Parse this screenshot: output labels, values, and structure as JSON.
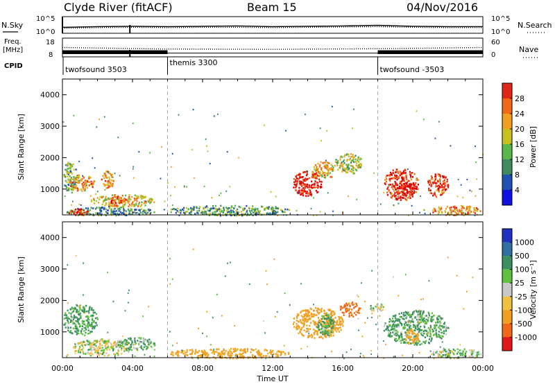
{
  "header": {
    "station": "Clyde River (fitACF)",
    "beam": "Beam 15",
    "date": "04/Nov/2016"
  },
  "noise_panel": {
    "left_label": "N.Sky",
    "right_label": "N.Search",
    "left_ticks": [
      "10^5",
      "10^0"
    ],
    "right_ticks": [
      "10^5",
      "10^0"
    ]
  },
  "freq_panel": {
    "left_label_line1": "Freq.",
    "left_label_line2": "[MHz]",
    "right_label": "Nave",
    "left_ticks": [
      "18",
      "8"
    ],
    "right_ticks": [
      "60",
      "0"
    ]
  },
  "cpid": {
    "label": "CPID",
    "segments": [
      {
        "name": "twofsound 3503",
        "start_hour": 0
      },
      {
        "name": "themis 3300",
        "start_hour": 6
      },
      {
        "name": "twofsound -3503",
        "start_hour": 18
      }
    ]
  },
  "power_panel": {
    "ylabel": "Slant Range [km]",
    "yticks": [
      "1000",
      "2000",
      "3000",
      "4000"
    ],
    "cbar_label": "Power [dB]",
    "cbar_ticks": [
      "4",
      "8",
      "12",
      "16",
      "20",
      "24",
      "28"
    ]
  },
  "velocity_panel": {
    "ylabel": "Slant Range [km]",
    "yticks": [
      "1000",
      "2000",
      "3000",
      "4000"
    ],
    "cbar_label": "Velocity [m s⁻¹]",
    "cbar_ticks": [
      "1000",
      "500",
      "100",
      "25",
      "-25",
      "-100",
      "-500",
      "-1000"
    ]
  },
  "x_axis": {
    "label": "Time UT",
    "ticks": [
      "00:00",
      "04:00",
      "08:00",
      "12:00",
      "16:00",
      "20:00",
      "00:00"
    ]
  },
  "colors": {
    "power_scale": [
      "#1010e0",
      "#2050b0",
      "#3f8a5e",
      "#58b94a",
      "#c8c020",
      "#f0a020",
      "#f06818",
      "#e02818",
      "#e00000"
    ],
    "velocity_scale": [
      "#2030c0",
      "#3070a0",
      "#3c9060",
      "#60c040",
      "#c8c8c8",
      "#f0c040",
      "#f0a020",
      "#f06818",
      "#e01818"
    ]
  },
  "chart_data": [
    {
      "type": "line",
      "title": "Clyde River (fitACF)",
      "xlabel": "Time UT",
      "xlim": [
        0,
        24
      ],
      "series": [
        {
          "name": "N.Sky",
          "x": [
            0,
            2,
            4,
            6,
            8,
            10,
            12,
            14,
            16,
            18,
            20,
            22,
            24
          ],
          "y": [
            18,
            20,
            21,
            20,
            21,
            22,
            20,
            21,
            22,
            24,
            21,
            20,
            20
          ]
        },
        {
          "name": "N.Search",
          "x": [
            0,
            2,
            4,
            6,
            8,
            10,
            12,
            14,
            16,
            18,
            20,
            22,
            24
          ],
          "y": [
            15,
            17,
            18,
            17,
            18,
            18,
            17,
            18,
            19,
            20,
            18,
            17,
            17
          ]
        }
      ]
    },
    {
      "type": "line",
      "xlabel": "Time UT",
      "ylabel": "Freq. [MHz]",
      "xlim": [
        0,
        24
      ],
      "ylim": [
        8,
        18
      ],
      "series": [
        {
          "name": "Freq.",
          "x": [
            0,
            6,
            18,
            24
          ],
          "y": [
            10,
            10,
            10,
            10
          ]
        },
        {
          "name": "Nave",
          "x": [
            0,
            6,
            12,
            18,
            24
          ],
          "y": [
            30,
            25,
            24,
            26,
            30
          ]
        }
      ]
    },
    {
      "type": "heatmap",
      "quantity": "Power",
      "xlabel": "Time UT",
      "ylabel": "Slant Range [km]",
      "xlim": [
        0,
        24
      ],
      "ylim": [
        180,
        4500
      ],
      "zlim": [
        0,
        30
      ],
      "blobs": [
        {
          "t0": 0.0,
          "t1": 0.8,
          "r0": 900,
          "r1": 1900,
          "v": 11
        },
        {
          "t0": 0.3,
          "t1": 1.8,
          "r0": 950,
          "r1": 1500,
          "v": 20
        },
        {
          "t0": 2.2,
          "t1": 2.9,
          "r0": 1000,
          "r1": 1600,
          "v": 18
        },
        {
          "t0": 0.0,
          "t1": 5.3,
          "r0": 180,
          "r1": 450,
          "v": 9
        },
        {
          "t0": 0.3,
          "t1": 1.5,
          "r0": 180,
          "r1": 400,
          "v": 27
        },
        {
          "t0": 1.6,
          "t1": 5.3,
          "r0": 450,
          "r1": 850,
          "v": 17
        },
        {
          "t0": 2.7,
          "t1": 3.6,
          "r0": 500,
          "r1": 800,
          "v": 23
        },
        {
          "t0": 6.0,
          "t1": 13.0,
          "r0": 180,
          "r1": 500,
          "v": 10
        },
        {
          "t0": 13.1,
          "t1": 14.8,
          "r0": 800,
          "r1": 1600,
          "v": 27
        },
        {
          "t0": 14.2,
          "t1": 15.5,
          "r0": 1300,
          "r1": 1900,
          "v": 18
        },
        {
          "t0": 15.5,
          "t1": 17.1,
          "r0": 1500,
          "r1": 2150,
          "v": 14
        },
        {
          "t0": 18.3,
          "t1": 20.3,
          "r0": 650,
          "r1": 1700,
          "v": 25
        },
        {
          "t0": 19.0,
          "t1": 20.2,
          "r0": 800,
          "r1": 1200,
          "v": 28
        },
        {
          "t0": 20.8,
          "t1": 22.0,
          "r0": 750,
          "r1": 1550,
          "v": 24
        },
        {
          "t0": 21.0,
          "t1": 23.9,
          "r0": 180,
          "r1": 500,
          "v": 19
        }
      ]
    },
    {
      "type": "heatmap",
      "quantity": "Velocity",
      "xlabel": "Time UT",
      "ylabel": "Slant Range [km]",
      "xlim": [
        0,
        24
      ],
      "ylim": [
        180,
        4500
      ],
      "zlim": [
        -1000,
        1000
      ],
      "blobs": [
        {
          "t0": 0.0,
          "t1": 2.0,
          "r0": 900,
          "r1": 1900,
          "v": 150
        },
        {
          "t0": 0.5,
          "t1": 4.0,
          "r0": 250,
          "r1": 800,
          "v": 0
        },
        {
          "t0": 3.0,
          "t1": 5.3,
          "r0": 450,
          "r1": 850,
          "v": 100
        },
        {
          "t0": 6.0,
          "t1": 13.0,
          "r0": 180,
          "r1": 500,
          "v": -200
        },
        {
          "t0": 13.1,
          "t1": 16.0,
          "r0": 800,
          "r1": 1800,
          "v": -300
        },
        {
          "t0": 14.5,
          "t1": 15.5,
          "r0": 900,
          "r1": 1600,
          "v": 150
        },
        {
          "t0": 15.8,
          "t1": 17.0,
          "r0": 1500,
          "r1": 2000,
          "v": -600
        },
        {
          "t0": 17.5,
          "t1": 18.3,
          "r0": 1650,
          "r1": 1950,
          "v": 0
        },
        {
          "t0": 18.3,
          "t1": 22.0,
          "r0": 600,
          "r1": 1700,
          "v": 120
        },
        {
          "t0": 19.5,
          "t1": 20.3,
          "r0": 600,
          "r1": 1100,
          "v": -300
        },
        {
          "t0": 21.0,
          "t1": 23.9,
          "r0": 180,
          "r1": 500,
          "v": 80
        }
      ]
    }
  ]
}
